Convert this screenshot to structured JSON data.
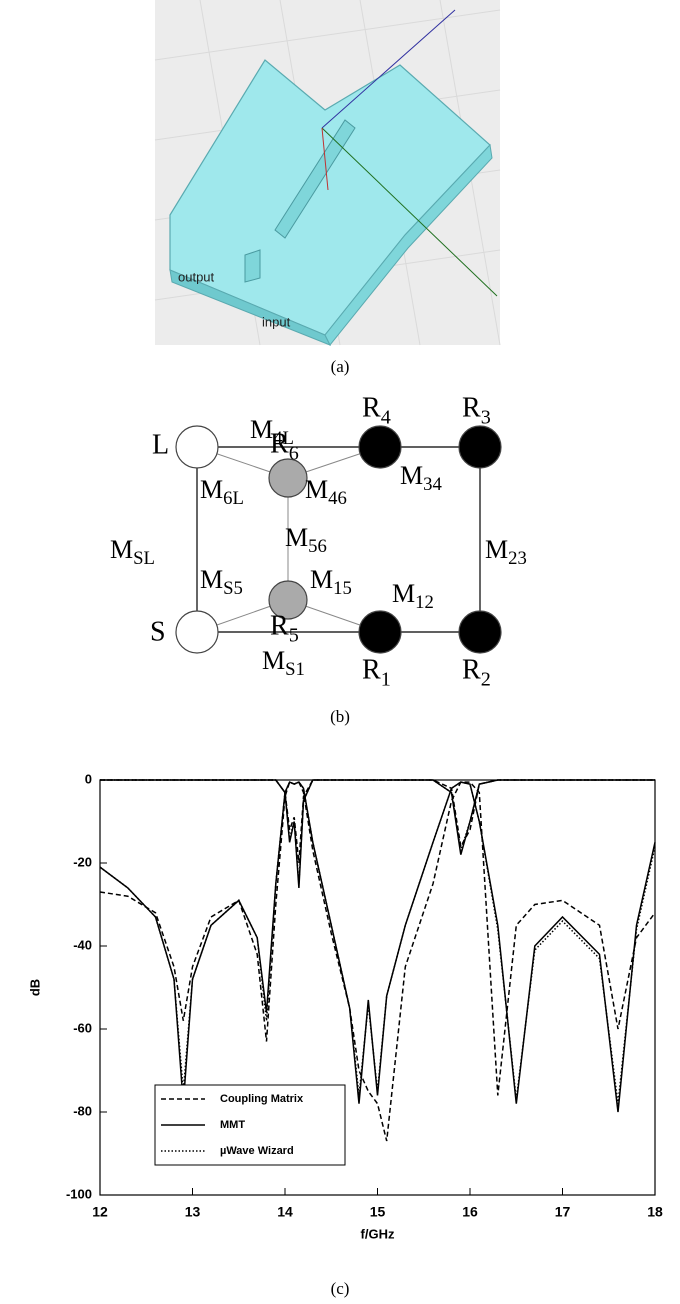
{
  "panel_a": {
    "labels": [
      "output",
      "input"
    ],
    "caption": "(a)"
  },
  "panel_b": {
    "nodes": [
      {
        "main": "L",
        "fill": "#fff"
      },
      {
        "main": "R",
        "sub": "4",
        "fill": "#000"
      },
      {
        "main": "R",
        "sub": "3",
        "fill": "#000"
      },
      {
        "main": "R",
        "sub": "6",
        "fill": "#aaa"
      },
      {
        "main": "R",
        "sub": "5",
        "fill": "#aaa"
      },
      {
        "main": "S",
        "fill": "#fff"
      },
      {
        "main": "R",
        "sub": "1",
        "fill": "#000"
      },
      {
        "main": "R",
        "sub": "2",
        "fill": "#000"
      }
    ],
    "couplings": [
      {
        "main": "M",
        "sub": "4L"
      },
      {
        "main": "M",
        "sub": "34"
      },
      {
        "main": "M",
        "sub": "6L"
      },
      {
        "main": "M",
        "sub": "46"
      },
      {
        "main": "M",
        "sub": "SL"
      },
      {
        "main": "M",
        "sub": "56"
      },
      {
        "main": "M",
        "sub": "23"
      },
      {
        "main": "M",
        "sub": "S5"
      },
      {
        "main": "M",
        "sub": "15"
      },
      {
        "main": "M",
        "sub": "12"
      },
      {
        "main": "M",
        "sub": "S1"
      }
    ],
    "caption": "(b)"
  },
  "chart_data": {
    "type": "line",
    "xlabel": "f/GHz",
    "ylabel": "dB",
    "caption": "(c)",
    "xlim": [
      12,
      18
    ],
    "ylim": [
      -100,
      0
    ],
    "xticks": [
      12,
      13,
      14,
      15,
      16,
      17,
      18
    ],
    "yticks": [
      -100,
      -80,
      -60,
      -40,
      -20,
      0
    ],
    "legend": "lower left",
    "x": [
      12,
      12.3,
      12.6,
      12.8,
      12.9,
      13.0,
      13.2,
      13.5,
      13.7,
      13.8,
      13.9,
      14.0,
      14.05,
      14.1,
      14.15,
      14.2,
      14.3,
      14.5,
      14.7,
      14.8,
      14.9,
      15.0,
      15.1,
      15.3,
      15.6,
      15.8,
      15.9,
      16.0,
      16.1,
      16.3,
      16.5,
      16.7,
      17.0,
      17.4,
      17.6,
      17.8,
      18.0
    ],
    "series": [
      {
        "name": "Coupling Matrix",
        "color": "#000",
        "dash": "dashed",
        "s21": [
          -27,
          -28,
          -32,
          -45,
          -58,
          -45,
          -33,
          -29,
          -42,
          -63,
          -30,
          -4,
          -0.5,
          -1,
          -0.5,
          -3,
          -17,
          -37,
          -55,
          -70,
          -75,
          -78,
          -87,
          -45,
          -25,
          -5,
          -0.5,
          -0.5,
          -3,
          -76,
          -35,
          -30,
          -29,
          -35,
          -60,
          -38,
          -32
        ],
        "s11": [
          0,
          0,
          0,
          0,
          0,
          0,
          0,
          0,
          0,
          0,
          0,
          -3,
          -12,
          -9,
          -20,
          -4,
          0,
          0,
          0,
          0,
          0,
          0,
          0,
          0,
          0,
          -2,
          -16,
          -12,
          -1,
          0,
          0,
          0,
          0,
          0,
          0,
          0,
          0
        ]
      },
      {
        "name": "MMT",
        "color": "#000",
        "dash": "solid",
        "s21": [
          -21,
          -26,
          -33,
          -48,
          -78,
          -48,
          -35,
          -29,
          -38,
          -56,
          -25,
          -3,
          -0.5,
          -1,
          -0.5,
          -2,
          -15,
          -35,
          -55,
          -78,
          -53,
          -76,
          -52,
          -35,
          -15,
          -2,
          -0.5,
          -1,
          -10,
          -35,
          -78,
          -40,
          -33,
          -42,
          -80,
          -35,
          -15
        ],
        "s11": [
          0,
          0,
          0,
          0,
          0,
          0,
          0,
          0,
          0,
          0,
          0,
          -3,
          -15,
          -10,
          -26,
          -5,
          0,
          0,
          0,
          0,
          0,
          0,
          0,
          0,
          0,
          -3,
          -18,
          -10,
          -1,
          0,
          0,
          0,
          0,
          0,
          0,
          0,
          0
        ]
      },
      {
        "name": "µWave Wizard",
        "color": "#000",
        "dash": "dotted",
        "s21": [
          -21,
          -26,
          -33,
          -48,
          -75,
          -48,
          -35,
          -29,
          -38,
          -58,
          -25,
          -3,
          -0.5,
          -1,
          -0.5,
          -2,
          -15,
          -35,
          -55,
          -76,
          -54,
          -75,
          -52,
          -35,
          -15,
          -2,
          -0.5,
          -1,
          -10,
          -36,
          -77,
          -41,
          -34,
          -43,
          -78,
          -36,
          -16
        ],
        "s11": [
          0,
          0,
          0,
          0,
          0,
          0,
          0,
          0,
          0,
          0,
          0,
          -3,
          -14,
          -10,
          -25,
          -5,
          0,
          0,
          0,
          0,
          0,
          0,
          0,
          0,
          0,
          -3,
          -17,
          -10,
          -1,
          0,
          0,
          0,
          0,
          0,
          0,
          0,
          0
        ]
      }
    ]
  }
}
